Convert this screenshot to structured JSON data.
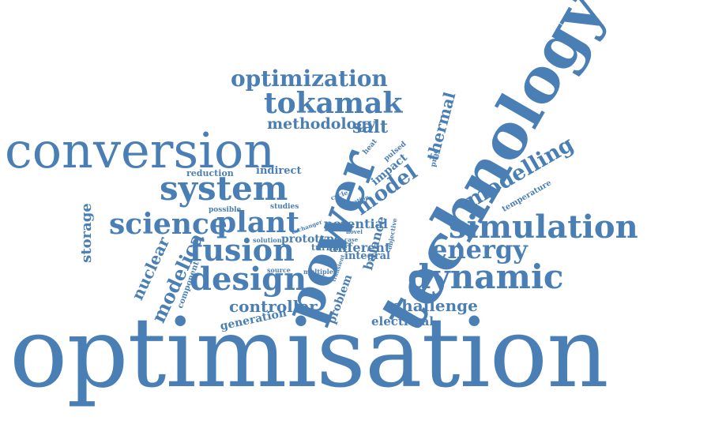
{
  "colors": {
    "word": "#4a7fb5",
    "background": "#ffffff"
  },
  "words": [
    {
      "id": "optimisation",
      "text": "optimisation"
    },
    {
      "id": "technology",
      "text": "technology"
    },
    {
      "id": "power",
      "text": "power"
    },
    {
      "id": "conversion",
      "text": "conversion"
    },
    {
      "id": "system",
      "text": "system"
    },
    {
      "id": "simulation",
      "text": "simulation"
    },
    {
      "id": "dynamic",
      "text": "dynamic"
    },
    {
      "id": "design",
      "text": "design"
    },
    {
      "id": "fusion",
      "text": "fusion"
    },
    {
      "id": "plant",
      "text": "plant"
    },
    {
      "id": "science",
      "text": "science"
    },
    {
      "id": "tokamak",
      "text": "tokamak"
    },
    {
      "id": "optimization",
      "text": "optimization"
    },
    {
      "id": "energy",
      "text": "energy"
    },
    {
      "id": "modelling",
      "text": "modelling"
    },
    {
      "id": "model",
      "text": "model"
    },
    {
      "id": "modelica",
      "text": "modelica"
    },
    {
      "id": "nuclear",
      "text": "nuclear"
    },
    {
      "id": "storage",
      "text": "storage"
    },
    {
      "id": "thermal",
      "text": "thermal"
    },
    {
      "id": "balance",
      "text": "balance"
    },
    {
      "id": "impact",
      "text": "impact"
    },
    {
      "id": "problem",
      "text": "problem"
    },
    {
      "id": "generation",
      "text": "generation"
    },
    {
      "id": "temperature",
      "text": "temperature"
    },
    {
      "id": "component",
      "text": "component"
    },
    {
      "id": "heat",
      "text": "heat"
    },
    {
      "id": "pulsed",
      "text": "pulsed"
    },
    {
      "id": "proc",
      "text": "proc"
    },
    {
      "id": "objective",
      "text": "objective"
    },
    {
      "id": "transient",
      "text": "transient"
    },
    {
      "id": "cycle",
      "text": "cycle"
    },
    {
      "id": "operation",
      "text": "operation"
    },
    {
      "id": "exchanger",
      "text": "exchanger"
    },
    {
      "id": "step",
      "text": "step"
    },
    {
      "id": "salt",
      "text": "salt"
    },
    {
      "id": "methodology",
      "text": "methodology"
    },
    {
      "id": "challenge",
      "text": "challenge"
    },
    {
      "id": "controller",
      "text": "controller"
    },
    {
      "id": "electrical",
      "text": "electrical"
    },
    {
      "id": "different",
      "text": "different"
    },
    {
      "id": "potential",
      "text": "potential"
    },
    {
      "id": "integral",
      "text": "integral"
    },
    {
      "id": "indirect",
      "text": "indirect"
    },
    {
      "id": "reduction",
      "text": "reduction"
    },
    {
      "id": "prototype",
      "text": "prototype"
    },
    {
      "id": "turbine",
      "text": "turbine"
    },
    {
      "id": "possible",
      "text": "possible"
    },
    {
      "id": "studies",
      "text": "studies"
    },
    {
      "id": "solution",
      "text": "solution"
    },
    {
      "id": "source",
      "text": "source"
    },
    {
      "id": "multiple",
      "text": "multiple"
    },
    {
      "id": "novel",
      "text": "novel"
    },
    {
      "id": "case",
      "text": "case"
    }
  ]
}
